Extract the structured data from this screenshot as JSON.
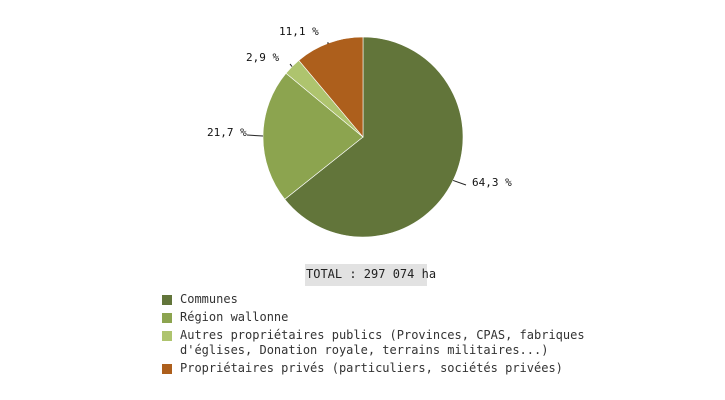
{
  "chart_data": {
    "type": "pie",
    "title": "",
    "unit": "%",
    "slices": [
      {
        "label": "Communes",
        "value": 64.3,
        "display": "64,3 %",
        "color": "#62753a"
      },
      {
        "label": "Région wallonne",
        "value": 21.7,
        "display": "21,7 %",
        "color": "#8ca44f"
      },
      {
        "label": "Autres propriétaires publics (Provinces, CPAS, fabriques d'églises, Donation royale, terrains militaires...)",
        "value": 2.9,
        "display": "2,9 %",
        "color": "#aec46e"
      },
      {
        "label": "Propriétaires privés (particuliers, sociétés privées)",
        "value": 11.1,
        "display": "11,1 %",
        "color": "#ad5f1c"
      }
    ],
    "total": "TOTAL : 297 074 ha",
    "legend_position": "bottom"
  },
  "labels": {
    "communes": "64,3 %",
    "region": "21,7 %",
    "autres": "2,9 %",
    "prives": "11,1 %"
  },
  "total_label": "TOTAL : 297 074 ha",
  "legend": {
    "items": [
      {
        "label": "Communes"
      },
      {
        "label": "Région wallonne"
      },
      {
        "label": "Autres propriétaires publics (Provinces, CPAS, fabriques\nd'églises, Donation royale, terrains militaires...)"
      },
      {
        "label": "Propriétaires privés (particuliers, sociétés privées)"
      }
    ]
  }
}
